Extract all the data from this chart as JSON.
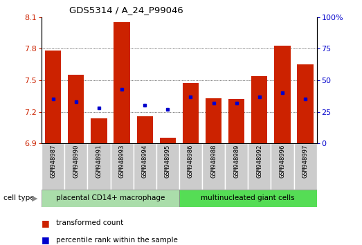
{
  "title": "GDS5314 / A_24_P99046",
  "samples": [
    "GSM948987",
    "GSM948990",
    "GSM948991",
    "GSM948993",
    "GSM948994",
    "GSM948995",
    "GSM948986",
    "GSM948988",
    "GSM948989",
    "GSM948992",
    "GSM948996",
    "GSM948997"
  ],
  "transformed_counts": [
    7.78,
    7.55,
    7.14,
    8.05,
    7.16,
    6.95,
    7.47,
    7.33,
    7.32,
    7.54,
    7.83,
    7.65
  ],
  "percentile_ranks": [
    35,
    33,
    28,
    43,
    30,
    27,
    37,
    32,
    32,
    37,
    40,
    35
  ],
  "group1_label": "placental CD14+ macrophage",
  "group2_label": "multinucleated giant cells",
  "group1_count": 6,
  "group2_count": 6,
  "y_min": 6.9,
  "y_max": 8.1,
  "y_ticks": [
    6.9,
    7.2,
    7.5,
    7.8,
    8.1
  ],
  "right_y_ticks": [
    0,
    25,
    50,
    75,
    100
  ],
  "bar_color": "#cc2200",
  "dot_color": "#0000cc",
  "group1_bg": "#aaddaa",
  "group2_bg": "#55dd55",
  "sample_bg": "#cccccc",
  "legend_bar_label": "transformed count",
  "legend_dot_label": "percentile rank within the sample",
  "cell_type_label": "cell type"
}
